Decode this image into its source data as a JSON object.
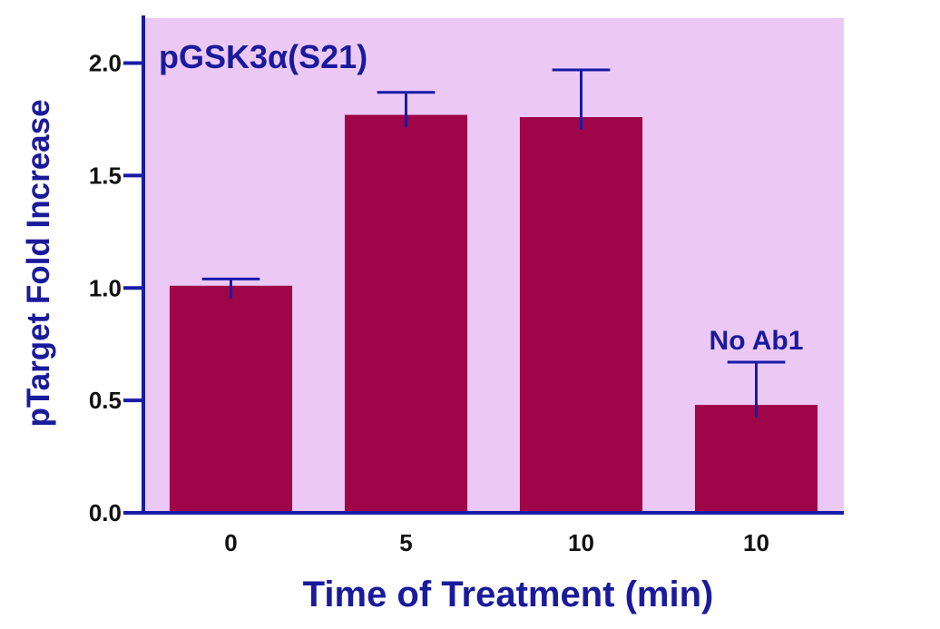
{
  "colors": {
    "plot_background": "#ecc9f5",
    "bar": "#9e0649",
    "axis": "#1a1aa8",
    "text": "#1a1a9c"
  },
  "chart_data": {
    "type": "bar",
    "title": "pGSK3α(S21)",
    "xlabel": "Time of Treatment (min)",
    "ylabel": "pTarget Fold Increase",
    "categories": [
      "0",
      "5",
      "10",
      "10"
    ],
    "values": [
      1.01,
      1.77,
      1.76,
      0.48
    ],
    "error_upper": [
      1.04,
      1.87,
      1.97,
      0.67
    ],
    "ylim": [
      0,
      2.2
    ],
    "yticks": [
      "0.0",
      "0.5",
      "1.0",
      "1.5",
      "2.0"
    ],
    "annotations": [
      {
        "text": "No Ab1",
        "category_index": 3
      }
    ],
    "grid": false,
    "legend": "none"
  }
}
